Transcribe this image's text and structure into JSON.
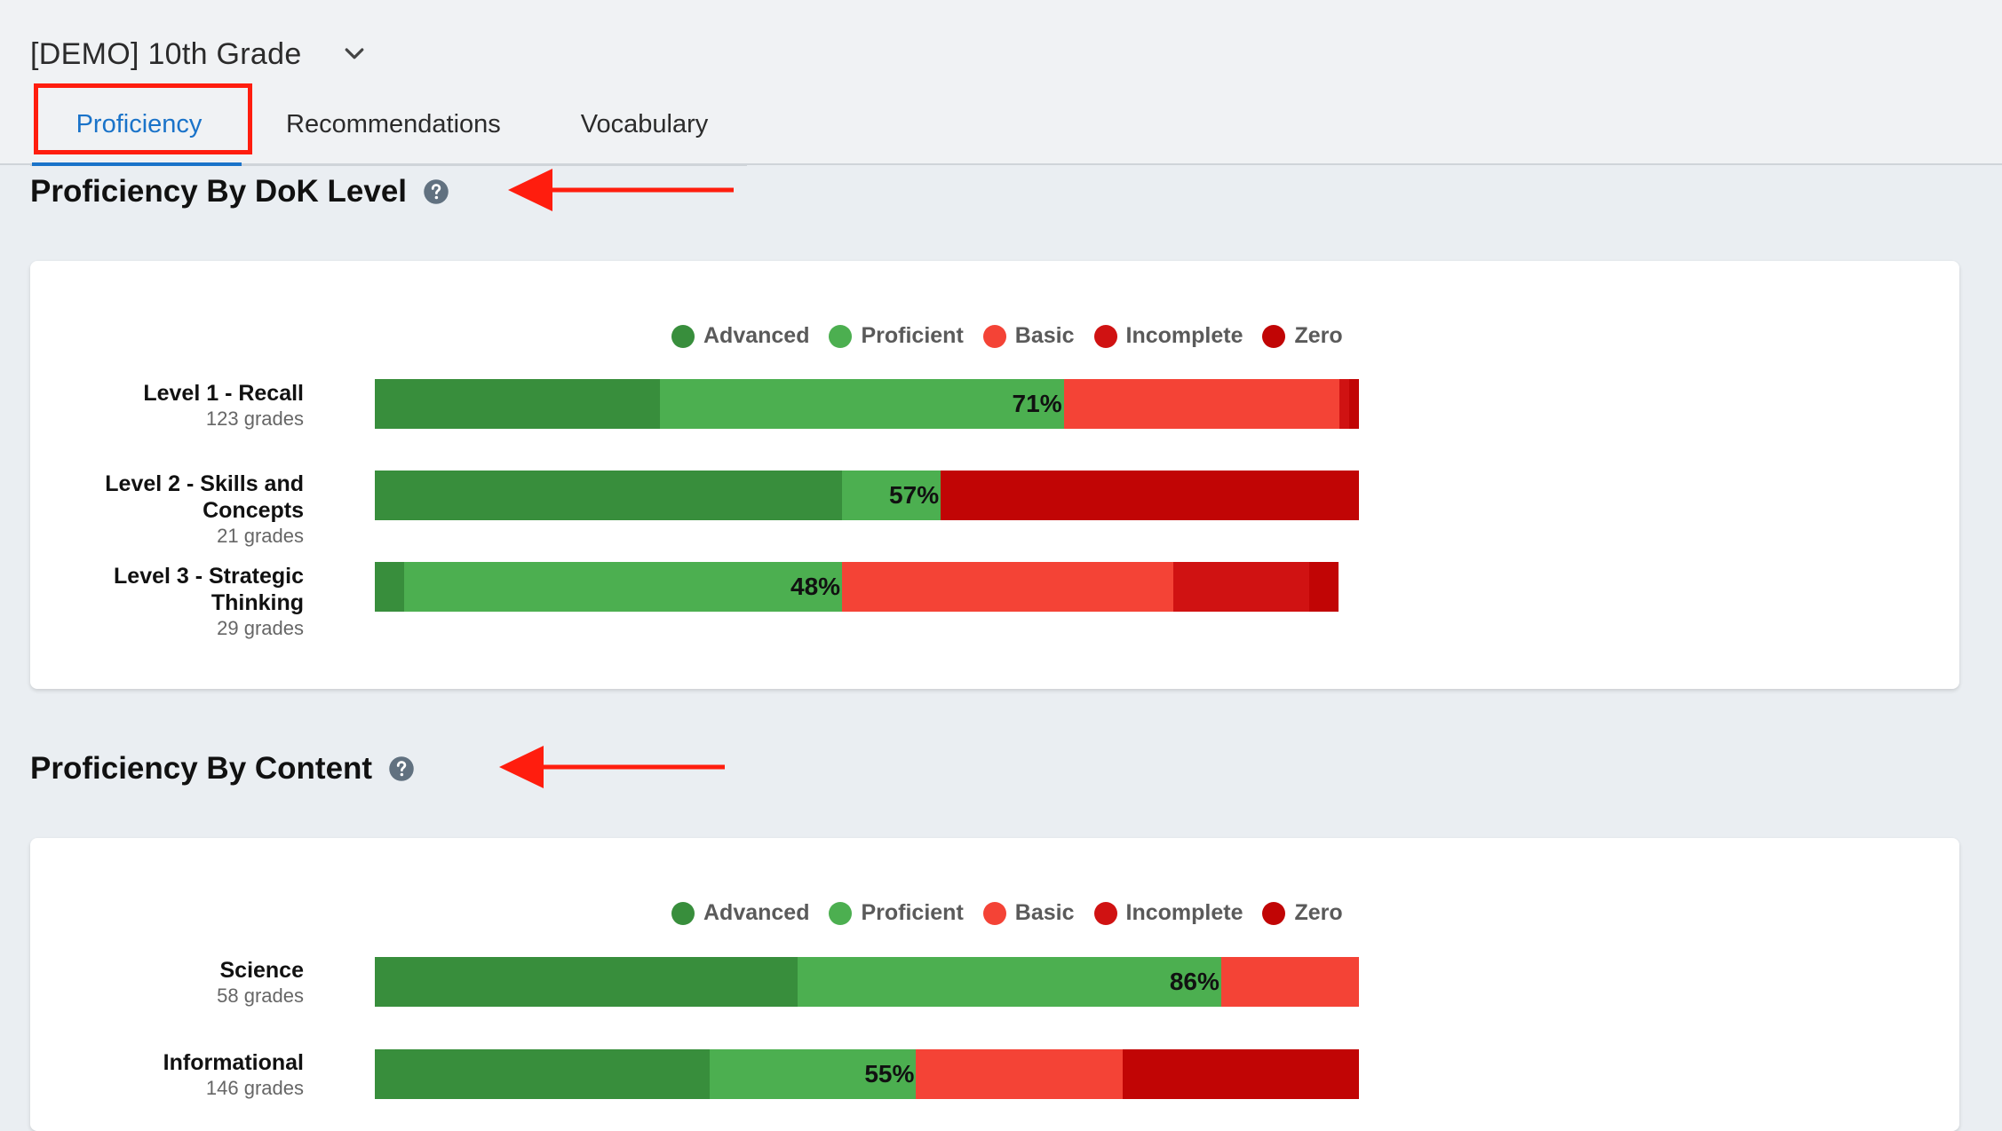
{
  "header": {
    "course_title": "[DEMO] 10th Grade",
    "tabs": [
      {
        "label": "Proficiency",
        "active": true
      },
      {
        "label": "Recommendations",
        "active": false
      },
      {
        "label": "Vocabulary",
        "active": false
      }
    ]
  },
  "colors": {
    "Advanced": "#388e3c",
    "Proficient": "#4caf50",
    "Basic": "#f44336",
    "Incomplete": "#d01212",
    "Zero": "#c10505",
    "accent": "#1a73c9",
    "annotation": "#ff1d0e"
  },
  "legend": [
    "Advanced",
    "Proficient",
    "Basic",
    "Incomplete",
    "Zero"
  ],
  "sections": [
    {
      "title": "Proficiency By DoK Level",
      "rows": [
        {
          "name_lines": [
            "Level 1 - Recall"
          ],
          "count": "123 grades",
          "percent_label": "71%",
          "fractions": [
            0.29,
            0.41,
            0.28,
            0.01,
            0.01
          ]
        },
        {
          "name_lines": [
            "Level 2 - Skills and",
            "Concepts"
          ],
          "count": "21 grades",
          "percent_label": "57%",
          "fractions": [
            0.475,
            0.1,
            0.0,
            0.0,
            0.425
          ]
        },
        {
          "name_lines": [
            "Level 3 - Strategic",
            "Thinking"
          ],
          "count": "29 grades",
          "percent_label": "48%",
          "fractions": [
            0.03,
            0.45,
            0.34,
            0.14,
            0.03
          ]
        }
      ]
    },
    {
      "title": "Proficiency By Content",
      "rows": [
        {
          "name_lines": [
            "Science"
          ],
          "count": "58 grades",
          "percent_label": "86%",
          "fractions": [
            0.43,
            0.43,
            0.14,
            0.0,
            0.0
          ]
        },
        {
          "name_lines": [
            "Informational"
          ],
          "count": "146 grades",
          "percent_label": "55%",
          "fractions": [
            0.34,
            0.21,
            0.21,
            0.0,
            0.24
          ]
        }
      ]
    }
  ],
  "icons": {
    "dropdown": "chevron-down-icon",
    "help": "question-circle-icon",
    "annotation_arrow": "arrow-left-icon"
  }
}
